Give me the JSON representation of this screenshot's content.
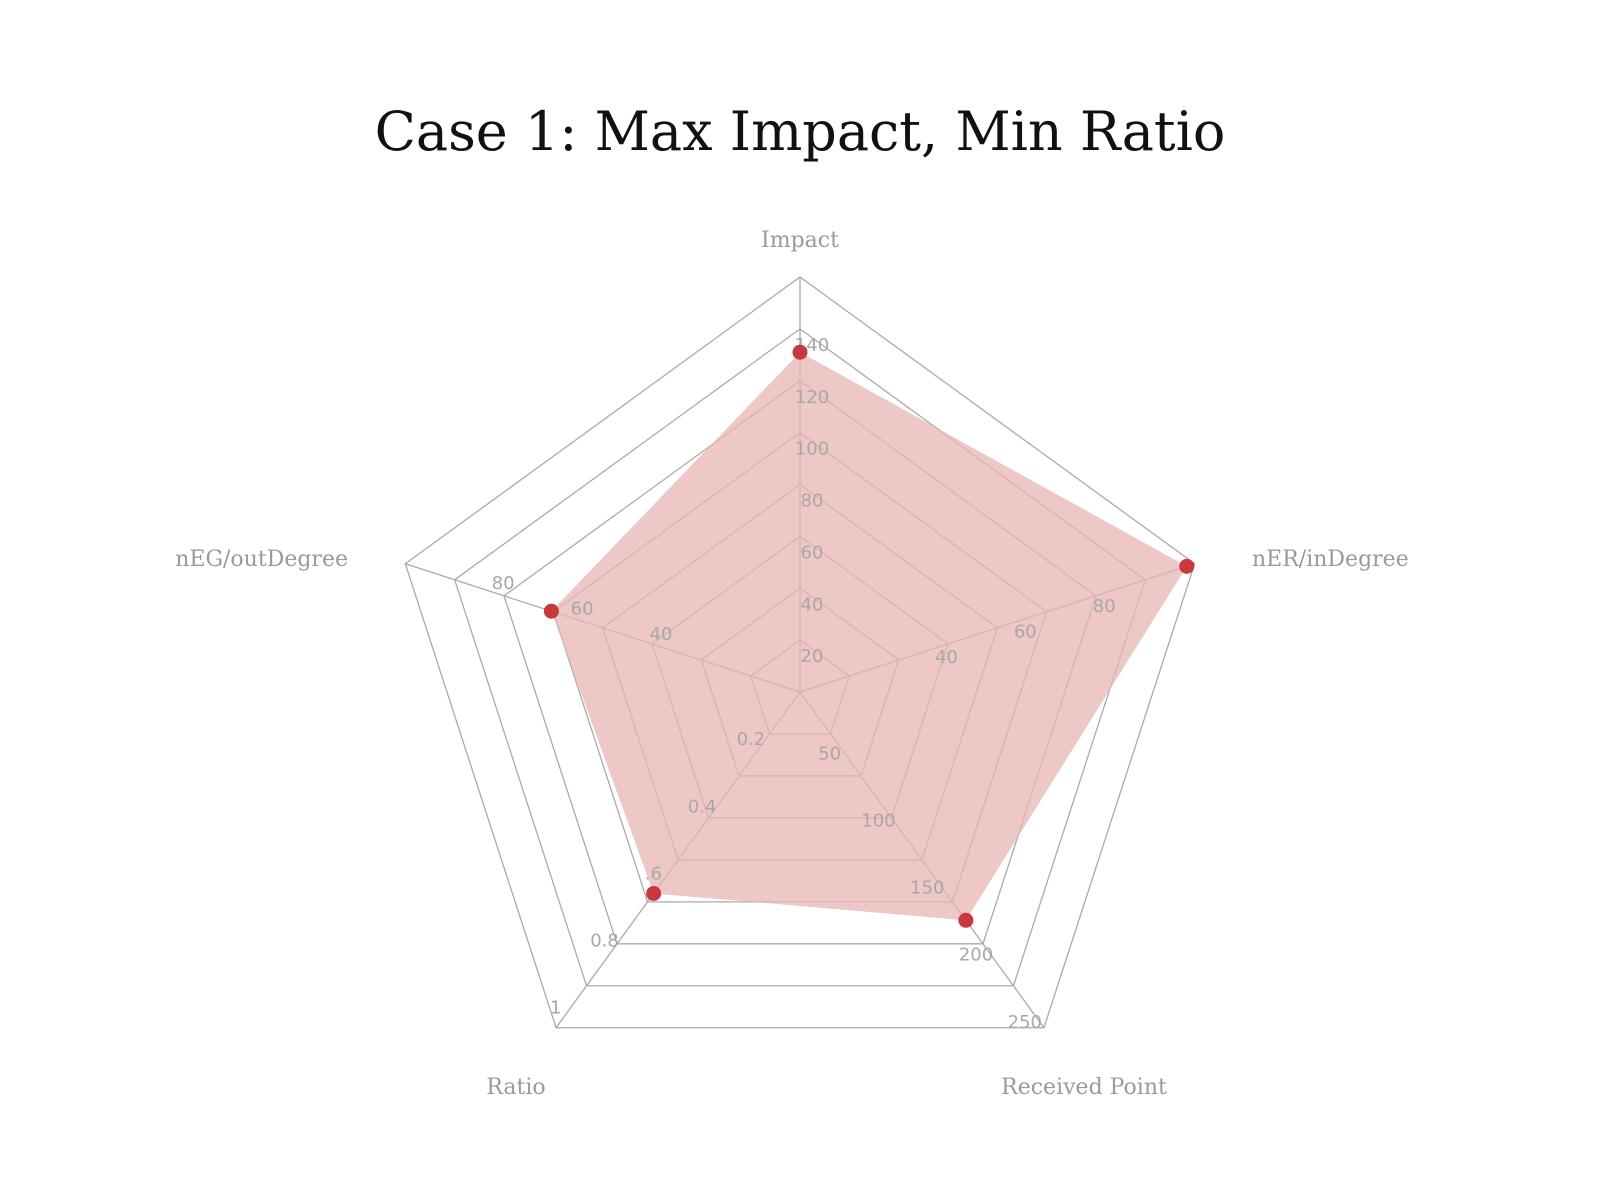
{
  "chart_data": {
    "type": "radar",
    "title": "Case 1: Max Impact, Min Ratio",
    "colors": {
      "fill": "#e8b4b4",
      "point": "#c8383c",
      "grid": "#aaaaaa"
    },
    "axes": [
      {
        "name": "Impact",
        "max": 160,
        "ticks": [
          20,
          40,
          60,
          80,
          100,
          120,
          140
        ],
        "tick_labels": [
          "20",
          "40",
          "60",
          "80",
          "100",
          "120",
          "140"
        ]
      },
      {
        "name": "nER/inDegree",
        "max": 100,
        "ticks": [
          40,
          60,
          80
        ],
        "tick_labels": [
          "40",
          "60",
          "80"
        ]
      },
      {
        "name": "Received Point",
        "max": 250,
        "ticks": [
          50,
          100,
          150,
          200,
          250
        ],
        "tick_labels": [
          "50",
          "100",
          "150",
          "200",
          "250"
        ]
      },
      {
        "name": "Ratio",
        "max": 1,
        "ticks": [
          0.2,
          0.4,
          0.6,
          0.8,
          1
        ],
        "tick_labels": [
          "0.2",
          "0.4",
          ".6",
          "0.8",
          "1"
        ]
      },
      {
        "name": "nEG/outDegree",
        "max": 100,
        "ticks": [
          40,
          60,
          80
        ],
        "tick_labels": [
          "40",
          "60",
          "80"
        ]
      }
    ],
    "series": [
      {
        "values": [
          131,
          98,
          170,
          0.6,
          63
        ]
      }
    ]
  }
}
